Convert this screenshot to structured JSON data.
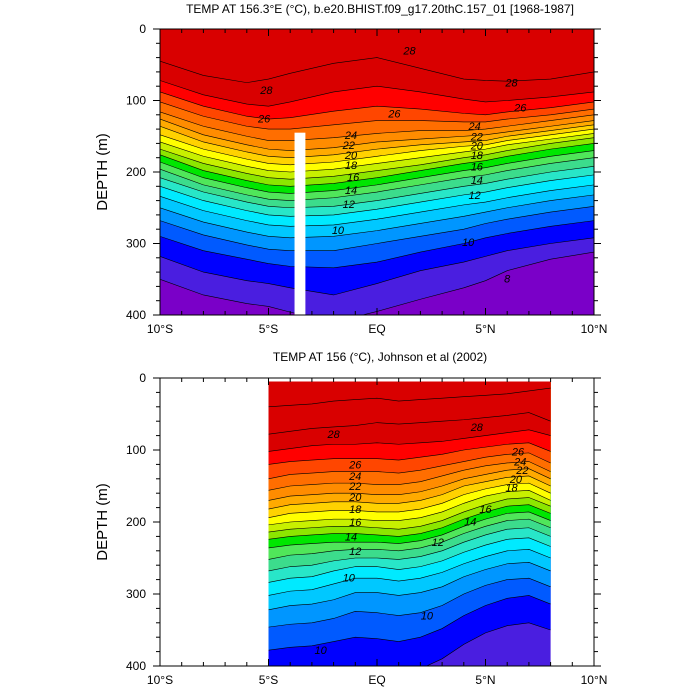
{
  "chart_data": [
    {
      "type": "heatmap",
      "subtype": "filled-contour",
      "title": "TEMP AT 156.3°E (°C), b.e20.BHIST.f09_g17.20thC.157_01 [1968-1987]",
      "xlabel": "",
      "ylabel": "DEPTH (m)",
      "xlim": [
        -10,
        10
      ],
      "ylim": [
        400,
        0
      ],
      "x_ticks": [
        "10°S",
        "5°S",
        "EQ",
        "5°N",
        "10°N"
      ],
      "x_tick_values": [
        -10,
        -5,
        0,
        5,
        10
      ],
      "y_ticks": [
        "0",
        "100",
        "200",
        "300",
        "400"
      ],
      "y_tick_values": [
        0,
        100,
        200,
        300,
        400
      ],
      "contour_interval": 1,
      "colormap": [
        "#7a00c8",
        "#4a1ee0",
        "#0000ff",
        "#005aff",
        "#0096ff",
        "#00c8ff",
        "#00eaff",
        "#28e6c8",
        "#3cdc8c",
        "#50e65a",
        "#00e600",
        "#8ce600",
        "#c8f000",
        "#ffff00",
        "#ffd200",
        "#ffaa00",
        "#ff8c00",
        "#ff6e00",
        "#ff4600",
        "#ff0000",
        "#d90000"
      ],
      "isotherm_depths": {
        "x": [
          -10,
          -8,
          -6,
          -5,
          -4,
          -2,
          0,
          2,
          4,
          5,
          6,
          8,
          10
        ],
        "levels": [
          {
            "t": 28,
            "depth": [
              45,
              65,
              75,
              70,
              62,
              48,
              40,
              55,
              70,
              72,
              73,
              70,
              60
            ]
          },
          {
            "t": 27,
            "depth": [
              72,
              92,
              105,
              108,
              102,
              88,
              80,
              88,
              98,
              102,
              100,
              95,
              88
            ]
          },
          {
            "t": 26,
            "depth": [
              88,
              108,
              122,
              126,
              124,
              115,
              108,
              112,
              118,
              120,
              116,
              110,
              102
            ]
          },
          {
            "t": 25,
            "depth": [
              102,
              122,
              136,
              140,
              140,
              134,
              128,
              128,
              130,
              130,
              126,
              120,
              112
            ]
          },
          {
            "t": 24,
            "depth": [
              116,
              136,
              150,
              156,
              156,
              152,
              146,
              142,
              142,
              140,
              136,
              128,
              120
            ]
          },
          {
            "t": 23,
            "depth": [
              126,
              148,
              162,
              168,
              170,
              166,
              158,
              154,
              150,
              148,
              144,
              136,
              128
            ]
          },
          {
            "t": 22,
            "depth": [
              136,
              158,
              172,
              178,
              180,
              176,
              168,
              162,
              158,
              156,
              150,
              142,
              134
            ]
          },
          {
            "t": 21,
            "depth": [
              148,
              168,
              182,
              188,
              190,
              186,
              178,
              170,
              164,
              162,
              156,
              148,
              140
            ]
          },
          {
            "t": 20,
            "depth": [
              158,
              178,
              192,
              198,
              200,
              196,
              188,
              180,
              172,
              168,
              162,
              154,
              146
            ]
          },
          {
            "t": 19,
            "depth": [
              168,
              188,
              202,
              208,
              210,
              206,
              198,
              190,
              180,
              176,
              170,
              160,
              152
            ]
          },
          {
            "t": 18,
            "depth": [
              176,
              198,
              212,
              218,
              220,
              216,
              208,
              198,
              188,
              184,
              178,
              168,
              160
            ]
          },
          {
            "t": 17,
            "depth": [
              186,
              208,
              222,
              228,
              230,
              226,
              218,
              208,
              198,
              194,
              188,
              178,
              170
            ]
          },
          {
            "t": 16,
            "depth": [
              196,
              218,
              232,
              238,
              240,
              236,
              228,
              218,
              208,
              204,
              198,
              188,
              180
            ]
          },
          {
            "t": 15,
            "depth": [
              208,
              228,
              242,
              248,
              250,
              248,
              240,
              230,
              220,
              216,
              210,
              200,
              192
            ]
          },
          {
            "t": 14,
            "depth": [
              220,
              240,
              254,
              260,
              262,
              260,
              252,
              242,
              232,
              228,
              222,
              212,
              204
            ]
          },
          {
            "t": 13,
            "depth": [
              234,
              254,
              268,
              274,
              276,
              274,
              266,
              256,
              246,
              242,
              236,
              226,
              218
            ]
          },
          {
            "t": 12,
            "depth": [
              250,
              270,
              284,
              290,
              292,
              290,
              282,
              272,
              262,
              256,
              250,
              240,
              232
            ]
          },
          {
            "t": 11,
            "depth": [
              268,
              288,
              302,
              308,
              310,
              310,
              300,
              290,
              280,
              272,
              266,
              256,
              248
            ]
          },
          {
            "t": 10,
            "depth": [
              290,
              310,
              322,
              328,
              332,
              334,
              326,
              312,
              300,
              292,
              286,
              276,
              268
            ]
          },
          {
            "t": 9,
            "depth": [
              318,
              340,
              352,
              356,
              362,
              372,
              356,
              338,
              326,
              318,
              310,
              300,
              292
            ]
          },
          {
            "t": 8,
            "depth": [
              350,
              372,
              384,
              388,
              396,
              410,
              395,
              378,
              362,
              352,
              338,
              322,
              312
            ]
          }
        ]
      },
      "contour_labels": [
        "28",
        "28",
        "28",
        "26",
        "26",
        "26",
        "24",
        "24",
        "22",
        "22",
        "20",
        "20",
        "18",
        "18",
        "16",
        "16",
        "14",
        "14",
        "12",
        "12",
        "10",
        "10",
        "8"
      ],
      "masked_region": {
        "x": [
          -3.8,
          -3.3
        ],
        "depth": [
          145,
          400
        ]
      }
    },
    {
      "type": "heatmap",
      "subtype": "filled-contour",
      "title": "TEMP AT 156 (°C), Johnson et al (2002)",
      "xlabel": "",
      "ylabel": "DEPTH (m)",
      "xlim": [
        -10,
        10
      ],
      "ylim": [
        400,
        0
      ],
      "x_ticks": [
        "10°S",
        "5°S",
        "EQ",
        "5°N",
        "10°N"
      ],
      "x_tick_values": [
        -10,
        -5,
        0,
        5,
        10
      ],
      "y_ticks": [
        "0",
        "100",
        "200",
        "300",
        "400"
      ],
      "y_tick_values": [
        0,
        100,
        200,
        300,
        400
      ],
      "data_extent": {
        "x": [
          -5,
          8
        ],
        "depth": [
          5,
          400
        ]
      },
      "isotherm_depths": {
        "x": [
          -5,
          -4,
          -3,
          -2,
          -1,
          0,
          1,
          2,
          3,
          4,
          5,
          6,
          7,
          8
        ],
        "levels": [
          {
            "t": 29,
            "depth": [
              40,
              38,
              36,
              32,
              30,
              28,
              32,
              30,
              28,
              26,
              24,
              22,
              18,
              14
            ]
          },
          {
            "t": 28,
            "depth": [
              78,
              74,
              70,
              68,
              66,
              62,
              64,
              62,
              60,
              58,
              55,
              52,
              48,
              60
            ]
          },
          {
            "t": 27,
            "depth": [
              102,
              98,
              94,
              92,
              92,
              90,
              92,
              90,
              88,
              84,
              80,
              76,
              72,
              80
            ]
          },
          {
            "t": 26,
            "depth": [
              120,
              116,
              114,
              112,
              112,
              112,
              114,
              110,
              106,
              100,
              96,
              92,
              90,
              102
            ]
          },
          {
            "t": 25,
            "depth": [
              140,
              134,
              132,
              130,
              130,
              130,
              132,
              128,
              122,
              116,
              110,
              106,
              104,
              118
            ]
          },
          {
            "t": 24,
            "depth": [
              156,
              150,
              148,
              146,
              146,
              148,
              148,
              144,
              136,
              128,
              122,
              118,
              116,
              130
            ]
          },
          {
            "t": 23,
            "depth": [
              170,
              164,
              162,
              160,
              160,
              162,
              162,
              158,
              150,
              140,
              134,
              128,
              126,
              140
            ]
          },
          {
            "t": 22,
            "depth": [
              182,
              176,
              174,
              172,
              172,
              174,
              174,
              170,
              162,
              150,
              144,
              138,
              136,
              150
            ]
          },
          {
            "t": 21,
            "depth": [
              194,
              188,
              186,
              184,
              184,
              186,
              186,
              182,
              174,
              162,
              154,
              148,
              146,
              160
            ]
          },
          {
            "t": 20,
            "depth": [
              204,
              200,
              198,
              196,
              196,
              198,
              198,
              194,
              186,
              174,
              164,
              158,
              156,
              170
            ]
          },
          {
            "t": 19,
            "depth": [
              214,
              210,
              208,
              206,
              206,
              208,
              210,
              206,
              198,
              186,
              176,
              168,
              166,
              178
            ]
          },
          {
            "t": 18,
            "depth": [
              224,
              220,
              218,
              216,
              216,
              218,
              220,
              216,
              208,
              196,
              186,
              178,
              176,
              188
            ]
          },
          {
            "t": 17,
            "depth": [
              236,
              232,
              230,
              228,
              228,
              228,
              230,
              226,
              218,
              206,
              196,
              188,
              186,
              198
            ]
          },
          {
            "t": 16,
            "depth": [
              252,
              246,
              244,
              240,
              238,
              238,
              240,
              236,
              228,
              216,
              206,
              198,
              196,
              208
            ]
          },
          {
            "t": 15,
            "depth": [
              268,
              262,
              260,
              254,
              250,
              250,
              252,
              248,
              240,
              228,
              218,
              210,
              208,
              220
            ]
          },
          {
            "t": 14,
            "depth": [
              284,
              278,
              276,
              268,
              262,
              262,
              266,
              262,
              254,
              242,
              232,
              224,
              222,
              234
            ]
          },
          {
            "t": 13,
            "depth": [
              302,
              296,
              294,
              286,
              278,
              278,
              282,
              278,
              270,
              258,
              248,
              240,
              238,
              250
            ]
          },
          {
            "t": 12,
            "depth": [
              322,
              316,
              314,
              308,
              298,
              298,
              302,
              298,
              290,
              276,
              266,
              258,
              256,
              268
            ]
          },
          {
            "t": 11,
            "depth": [
              346,
              342,
              340,
              334,
              324,
              326,
              330,
              326,
              316,
              300,
              288,
              280,
              278,
              290
            ]
          },
          {
            "t": 10,
            "depth": [
              378,
              374,
              372,
              366,
              360,
              362,
              366,
              360,
              348,
              330,
              316,
              306,
              302,
              314
            ]
          },
          {
            "t": 9,
            "depth": [
              404,
              404,
              404,
              404,
              404,
              404,
              404,
              404,
              390,
              370,
              354,
              344,
              340,
              350
            ]
          }
        ]
      },
      "contour_labels": [
        "28",
        "28",
        "26",
        "26",
        "24",
        "24",
        "22",
        "22",
        "20",
        "20",
        "18",
        "18",
        "16",
        "16",
        "14",
        "14",
        "12",
        "12",
        "10",
        "10",
        "10"
      ]
    }
  ]
}
